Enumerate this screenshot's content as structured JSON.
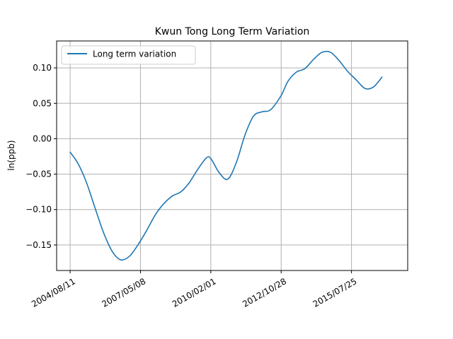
{
  "chart_data": {
    "type": "line",
    "title": "Kwun Tong Long Term Variation",
    "xlabel": "",
    "ylabel": "ln(ppb)",
    "x_tick_labels": [
      "2004/08/11",
      "2007/05/08",
      "2010/02/01",
      "2012/10/28",
      "2015/07/25"
    ],
    "y_tick_labels": [
      "0.10",
      "0.05",
      "0.00",
      "−0.05",
      "−0.10",
      "−0.15"
    ],
    "y_tick_values": [
      0.1,
      0.05,
      0.0,
      -0.05,
      -0.1,
      -0.15
    ],
    "ylim": [
      -0.186,
      0.138
    ],
    "xlim": [
      "2004/02/01",
      "2017/10/01"
    ],
    "grid": true,
    "legend_position": "top-left",
    "series": [
      {
        "name": "Long term variation",
        "color": "#1f77b4",
        "points": [
          [
            "2004/08/11",
            -0.019
          ],
          [
            "2004/12/01",
            -0.035
          ],
          [
            "2005/04/01",
            -0.062
          ],
          [
            "2005/08/01",
            -0.098
          ],
          [
            "2005/12/01",
            -0.133
          ],
          [
            "2006/04/01",
            -0.159
          ],
          [
            "2006/08/01",
            -0.171
          ],
          [
            "2006/12/01",
            -0.166
          ],
          [
            "2007/04/01",
            -0.15
          ],
          [
            "2007/08/01",
            -0.13
          ],
          [
            "2007/12/01",
            -0.108
          ],
          [
            "2008/04/01",
            -0.092
          ],
          [
            "2008/08/01",
            -0.081
          ],
          [
            "2008/12/01",
            -0.075
          ],
          [
            "2009/04/01",
            -0.062
          ],
          [
            "2009/08/01",
            -0.043
          ],
          [
            "2009/12/01",
            -0.027
          ],
          [
            "2010/02/01",
            -0.028
          ],
          [
            "2010/06/01",
            -0.048
          ],
          [
            "2010/10/01",
            -0.057
          ],
          [
            "2011/02/01",
            -0.033
          ],
          [
            "2011/06/01",
            0.005
          ],
          [
            "2011/10/01",
            0.032
          ],
          [
            "2012/02/01",
            0.038
          ],
          [
            "2012/06/01",
            0.041
          ],
          [
            "2012/10/28",
            0.061
          ],
          [
            "2013/02/01",
            0.081
          ],
          [
            "2013/06/01",
            0.094
          ],
          [
            "2013/10/01",
            0.099
          ],
          [
            "2014/02/01",
            0.112
          ],
          [
            "2014/06/01",
            0.122
          ],
          [
            "2014/10/01",
            0.122
          ],
          [
            "2015/02/01",
            0.11
          ],
          [
            "2015/06/01",
            0.095
          ],
          [
            "2015/10/01",
            0.083
          ],
          [
            "2016/02/01",
            0.071
          ],
          [
            "2016/06/01",
            0.073
          ],
          [
            "2016/10/01",
            0.087
          ]
        ]
      }
    ]
  }
}
